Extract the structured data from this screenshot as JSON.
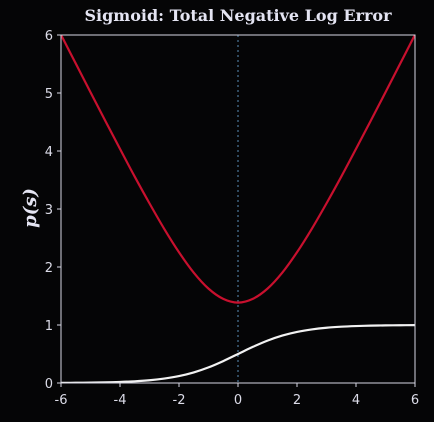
{
  "chart_data": {
    "type": "line",
    "title": "Sigmoid: Total Negative Log Error",
    "xlabel": "s",
    "ylabel": "p(s)",
    "xlim": [
      -6,
      6
    ],
    "ylim": [
      0,
      6
    ],
    "xticks": [
      -6,
      -4,
      -2,
      0,
      2,
      4,
      6
    ],
    "yticks": [
      0,
      1,
      2,
      3,
      4,
      5,
      6
    ],
    "xtick_labels": [
      "-6",
      "-4",
      "-2",
      "0",
      "2",
      "4",
      "6"
    ],
    "ytick_labels": [
      "0",
      "1",
      "2",
      "3",
      "4",
      "5",
      "6"
    ],
    "reference_lines": [
      {
        "orientation": "vertical",
        "x": 0,
        "style": "dotted",
        "color": "#5a8fb8"
      },
      {
        "orientation": "horizontal",
        "y": 0,
        "style": "dotted",
        "color": "#5a8fb8"
      }
    ],
    "series": [
      {
        "color": "#c8102e",
        "x": [
          -6,
          -5.5,
          -5,
          -4.5,
          -4,
          -3.5,
          -3,
          -2.5,
          -2,
          -1.5,
          -1,
          -0.5,
          0,
          0.5,
          1,
          1.5,
          2,
          2.5,
          3,
          3.5,
          4,
          4.5,
          5,
          5.5,
          6
        ],
        "y": [
          6.005,
          5.508,
          5.013,
          4.522,
          4.036,
          3.557,
          3.097,
          2.657,
          2.254,
          1.902,
          1.627,
          1.45,
          1.386,
          1.45,
          1.627,
          1.902,
          2.254,
          2.657,
          3.097,
          3.557,
          4.036,
          4.522,
          5.013,
          5.508,
          6.005
        ]
      },
      {
        "color": "#f2f2f2",
        "x": [
          -6,
          -5.5,
          -5,
          -4.5,
          -4,
          -3.5,
          -3,
          -2.5,
          -2,
          -1.5,
          -1,
          -0.5,
          0,
          0.5,
          1,
          1.5,
          2,
          2.5,
          3,
          3.5,
          4,
          4.5,
          5,
          5.5,
          6
        ],
        "y": [
          0.002,
          0.004,
          0.007,
          0.011,
          0.018,
          0.029,
          0.047,
          0.076,
          0.119,
          0.182,
          0.269,
          0.378,
          0.5,
          0.622,
          0.731,
          0.818,
          0.881,
          0.924,
          0.953,
          0.971,
          0.982,
          0.989,
          0.993,
          0.996,
          0.998
        ]
      }
    ],
    "grid": false,
    "colors": {
      "background": "#050506",
      "axes_border": "#d8d8e4",
      "text": "#e4e4f2"
    }
  }
}
